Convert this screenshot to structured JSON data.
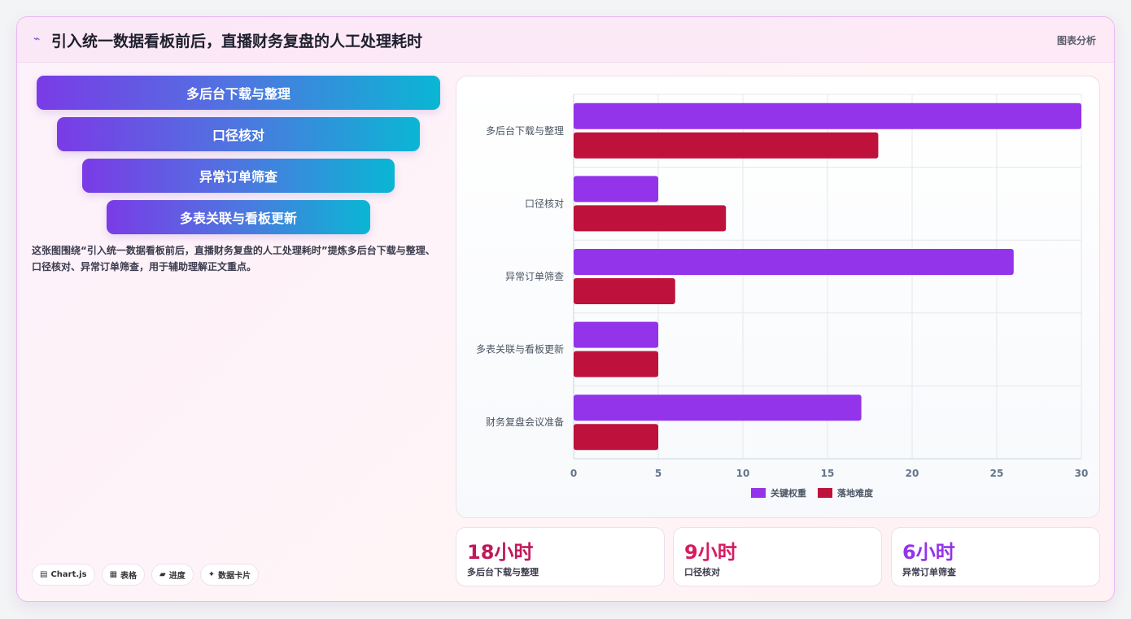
{
  "header": {
    "icon": "chart-line-icon",
    "title": "引入统一数据看板前后，直播财务复盘的人工处理耗时",
    "tag": "图表分析"
  },
  "funnel": [
    {
      "label": "多后台下载与整理"
    },
    {
      "label": "口径核对"
    },
    {
      "label": "异常订单筛查"
    },
    {
      "label": "多表关联与看板更新"
    }
  ],
  "description": "这张图围绕“引入统一数据看板前后，直播财务复盘的人工处理耗时”提炼多后台下载与整理、口径核对、异常订单筛查，用于辅助理解正文重点。",
  "chips": [
    {
      "icon": "chart-icon",
      "glyph": "▤",
      "label": "Chart.js"
    },
    {
      "icon": "table-icon",
      "glyph": "▦",
      "label": "表格"
    },
    {
      "icon": "progress-icon",
      "glyph": "▰",
      "label": "进度"
    },
    {
      "icon": "sparkle-icon",
      "glyph": "✦",
      "label": "数据卡片"
    }
  ],
  "stats": [
    {
      "value": "18小时",
      "label": "多后台下载与整理",
      "color": "#c2185b"
    },
    {
      "value": "9小时",
      "label": "口径核对",
      "color": "#d81b60"
    },
    {
      "value": "6小时",
      "label": "异常订单筛查",
      "color": "#9333ea"
    }
  ],
  "chart_data": {
    "type": "bar",
    "orientation": "horizontal",
    "categories": [
      "多后台下载与整理",
      "口径核对",
      "异常订单筛查",
      "多表关联与看板更新",
      "财务复盘会议准备"
    ],
    "series": [
      {
        "name": "关键权重",
        "values": [
          30,
          5,
          26,
          5,
          17
        ],
        "color": "#9333ea"
      },
      {
        "name": "落地难度",
        "values": [
          18,
          9,
          6,
          5,
          5
        ],
        "color": "#be123c"
      }
    ],
    "xlim": [
      0,
      30
    ],
    "xticks": [
      0,
      5,
      10,
      15,
      20,
      25,
      30
    ],
    "grid": true,
    "legend": "bottom"
  }
}
